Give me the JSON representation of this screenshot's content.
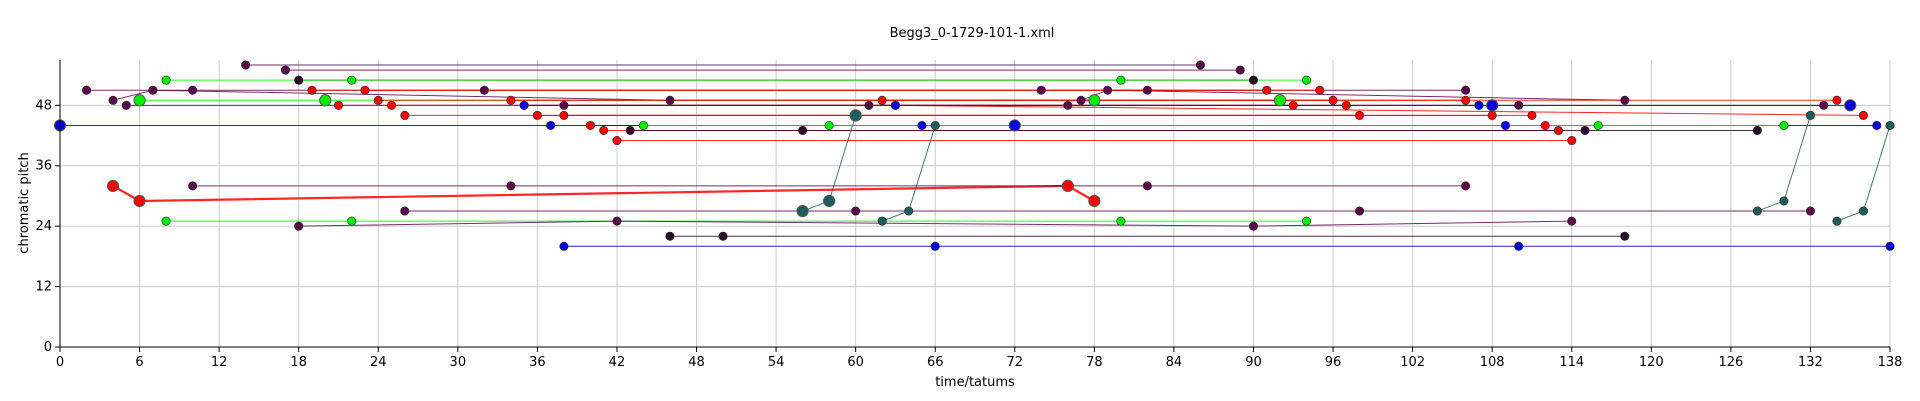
{
  "chart_data": {
    "type": "scatter",
    "title": "Begg3_0-1729-101-1.xml",
    "xlabel": "time/tatums",
    "ylabel": "chromatic pitch",
    "xlim": [
      0,
      138
    ],
    "ylim": [
      0,
      57
    ],
    "xticks": [
      0,
      6,
      12,
      18,
      24,
      30,
      36,
      42,
      48,
      54,
      60,
      66,
      72,
      78,
      84,
      90,
      96,
      102,
      108,
      114,
      120,
      126,
      132,
      138
    ],
    "yticks": [
      0,
      12,
      24,
      36,
      48
    ],
    "grid": true,
    "colors": {
      "red": "#ff0000",
      "green": "#00ee00",
      "blue": "#0000dd",
      "purple": "#5a0a4a",
      "teal": "#1f5c5c",
      "dark": "#2b0a2b"
    },
    "series": [
      {
        "color": "purple",
        "points": [
          [
            14,
            56
          ],
          [
            86,
            56
          ]
        ]
      },
      {
        "color": "purple",
        "points": [
          [
            17,
            55
          ],
          [
            89,
            55
          ]
        ]
      },
      {
        "color": "dark",
        "points": [
          [
            18,
            53
          ],
          [
            90,
            53
          ]
        ]
      },
      {
        "color": "green",
        "points": [
          [
            8,
            53
          ],
          [
            22,
            53
          ],
          [
            80,
            53
          ],
          [
            94,
            53
          ]
        ]
      },
      {
        "color": "purple",
        "points": [
          [
            2,
            51
          ],
          [
            10,
            51
          ],
          [
            32,
            51
          ],
          [
            74,
            51
          ],
          [
            82,
            51
          ],
          [
            106,
            51
          ]
        ]
      },
      {
        "color": "purple",
        "points": [
          [
            4,
            49
          ],
          [
            7,
            51
          ],
          [
            46,
            49
          ],
          [
            77,
            49
          ],
          [
            79,
            51
          ],
          [
            118,
            49
          ]
        ]
      },
      {
        "color": "green",
        "points": [
          [
            6,
            49
          ],
          [
            20,
            49
          ],
          [
            78,
            49
          ],
          [
            92,
            49
          ]
        ]
      },
      {
        "color": "purple",
        "points": [
          [
            5,
            48
          ],
          [
            76,
            48
          ]
        ]
      },
      {
        "color": "red",
        "points": [
          [
            19,
            51
          ],
          [
            91,
            51
          ]
        ]
      },
      {
        "color": "red",
        "points": [
          [
            21,
            48
          ],
          [
            93,
            48
          ]
        ]
      },
      {
        "color": "red",
        "points": [
          [
            23,
            51
          ],
          [
            95,
            51
          ]
        ]
      },
      {
        "color": "red",
        "points": [
          [
            24,
            49
          ],
          [
            96,
            49
          ]
        ]
      },
      {
        "color": "red",
        "points": [
          [
            25,
            48
          ],
          [
            97,
            48
          ]
        ]
      },
      {
        "color": "red",
        "points": [
          [
            26,
            46
          ],
          [
            98,
            46
          ]
        ]
      },
      {
        "color": "red",
        "points": [
          [
            34,
            49
          ],
          [
            106,
            49
          ]
        ]
      },
      {
        "color": "red",
        "points": [
          [
            35,
            48
          ],
          [
            107,
            48
          ]
        ]
      },
      {
        "color": "red",
        "points": [
          [
            36,
            46
          ],
          [
            108,
            46
          ]
        ]
      },
      {
        "color": "red",
        "points": [
          [
            38,
            46
          ],
          [
            111,
            46
          ]
        ]
      },
      {
        "color": "red",
        "points": [
          [
            40,
            44
          ],
          [
            112,
            44
          ]
        ]
      },
      {
        "color": "red",
        "points": [
          [
            41,
            43
          ],
          [
            113,
            43
          ]
        ]
      },
      {
        "color": "red",
        "points": [
          [
            42,
            41
          ],
          [
            114,
            41
          ]
        ]
      },
      {
        "color": "red",
        "points": [
          [
            62,
            49
          ],
          [
            134,
            49
          ]
        ]
      },
      {
        "color": "red",
        "points": [
          [
            63,
            48
          ],
          [
            136,
            46
          ]
        ]
      },
      {
        "color": "blue",
        "points": [
          [
            35,
            48
          ],
          [
            63,
            48
          ],
          [
            107,
            48
          ],
          [
            135,
            48
          ]
        ]
      },
      {
        "color": "blue",
        "points": [
          [
            0,
            44
          ],
          [
            37,
            44
          ],
          [
            65,
            44
          ],
          [
            109,
            44
          ],
          [
            137,
            44
          ]
        ]
      },
      {
        "color": "purple",
        "points": [
          [
            38,
            48
          ],
          [
            61,
            48
          ],
          [
            110,
            48
          ],
          [
            133,
            48
          ]
        ]
      },
      {
        "color": "dark",
        "points": [
          [
            43,
            43
          ],
          [
            56,
            43
          ],
          [
            115,
            43
          ],
          [
            128,
            43
          ]
        ]
      },
      {
        "color": "green",
        "points": [
          [
            44,
            44
          ],
          [
            58,
            44
          ],
          [
            116,
            44
          ],
          [
            130,
            44
          ]
        ]
      },
      {
        "color": "teal",
        "points": [
          [
            56,
            27
          ],
          [
            58,
            29
          ],
          [
            60,
            46
          ]
        ]
      },
      {
        "color": "teal",
        "points": [
          [
            62,
            25
          ],
          [
            64,
            27
          ],
          [
            66,
            44
          ]
        ]
      },
      {
        "color": "teal",
        "points": [
          [
            128,
            27
          ],
          [
            130,
            29
          ],
          [
            132,
            46
          ]
        ]
      },
      {
        "color": "teal",
        "points": [
          [
            134,
            25
          ],
          [
            136,
            27
          ],
          [
            138,
            44
          ]
        ]
      },
      {
        "color": "red",
        "points": [
          [
            4,
            32
          ],
          [
            6,
            29
          ],
          [
            76,
            32
          ],
          [
            78,
            29
          ]
        ]
      },
      {
        "color": "purple",
        "points": [
          [
            10,
            32
          ],
          [
            34,
            32
          ],
          [
            82,
            32
          ],
          [
            106,
            32
          ]
        ]
      },
      {
        "color": "purple",
        "points": [
          [
            26,
            27
          ],
          [
            60,
            27
          ],
          [
            98,
            27
          ],
          [
            132,
            27
          ]
        ]
      },
      {
        "color": "green",
        "points": [
          [
            8,
            25
          ],
          [
            22,
            25
          ],
          [
            80,
            25
          ],
          [
            94,
            25
          ]
        ]
      },
      {
        "color": "purple",
        "points": [
          [
            18,
            24
          ],
          [
            42,
            25
          ],
          [
            90,
            24
          ],
          [
            114,
            25
          ]
        ]
      },
      {
        "color": "dark",
        "points": [
          [
            46,
            22
          ],
          [
            50,
            22
          ],
          [
            118,
            22
          ]
        ]
      },
      {
        "color": "blue",
        "points": [
          [
            38,
            20
          ],
          [
            66,
            20
          ],
          [
            110,
            20
          ],
          [
            138,
            20
          ]
        ]
      }
    ],
    "highlights": [
      {
        "x": 0,
        "y": 44,
        "color": "blue"
      },
      {
        "x": 60,
        "y": 46,
        "color": "teal"
      },
      {
        "x": 72,
        "y": 44,
        "color": "blue"
      },
      {
        "x": 108,
        "y": 48,
        "color": "blue"
      },
      {
        "x": 135,
        "y": 48,
        "color": "blue"
      },
      {
        "x": 4,
        "y": 32,
        "color": "red"
      },
      {
        "x": 6,
        "y": 29,
        "color": "red"
      },
      {
        "x": 76,
        "y": 32,
        "color": "red"
      },
      {
        "x": 78,
        "y": 29,
        "color": "red"
      },
      {
        "x": 56,
        "y": 27,
        "color": "teal"
      },
      {
        "x": 58,
        "y": 29,
        "color": "teal"
      },
      {
        "x": 6,
        "y": 49,
        "color": "green"
      },
      {
        "x": 20,
        "y": 49,
        "color": "green"
      },
      {
        "x": 78,
        "y": 49,
        "color": "green"
      },
      {
        "x": 92,
        "y": 49,
        "color": "green"
      }
    ]
  }
}
